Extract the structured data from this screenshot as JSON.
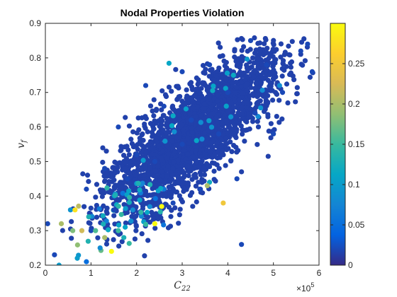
{
  "chart_data": {
    "type": "scatter",
    "title": "Nodal Properties Violation",
    "xlabel": "C",
    "xlabel_sub": "22",
    "ylabel": "v",
    "ylabel_sub": "f",
    "x_multiplier_base": "×10",
    "x_multiplier_exp": "5",
    "xlim": [
      0,
      6
    ],
    "ylim": [
      0.2,
      0.9
    ],
    "x_ticks": [
      "0",
      "1",
      "2",
      "3",
      "4",
      "5",
      "6"
    ],
    "y_ticks": [
      "0.2",
      "0.3",
      "0.4",
      "0.5",
      "0.6",
      "0.7",
      "0.8",
      "0.9"
    ],
    "colorbar": {
      "colormap": "parula",
      "clim": [
        0,
        0.3
      ],
      "ticks": [
        "0",
        "0.05",
        "0.1",
        "0.15",
        "0.2",
        "0.25"
      ],
      "tick_values": [
        0,
        0.05,
        0.1,
        0.15,
        0.2,
        0.25
      ]
    },
    "grid": false,
    "points": [
      [
        1.45,
        0.24,
        0.3
      ],
      [
        0.3,
        0.2,
        0.1
      ],
      [
        0.2,
        0.23,
        0.02
      ],
      [
        0.05,
        0.32,
        0.02
      ],
      [
        0.8,
        0.3,
        0.22
      ],
      [
        0.35,
        0.32,
        0.2
      ],
      [
        0.6,
        0.3,
        0.18
      ],
      [
        0.65,
        0.36,
        0.28
      ],
      [
        2.55,
        0.37,
        0.3
      ],
      [
        2.4,
        0.32,
        0.3
      ],
      [
        1.3,
        0.28,
        0.2
      ],
      [
        1.6,
        0.3,
        0.15
      ],
      [
        0.7,
        0.22,
        0.1
      ],
      [
        0.9,
        0.21,
        0.05
      ],
      [
        1.2,
        0.25,
        0.08
      ],
      [
        4.3,
        0.26,
        0.02
      ],
      [
        5.75,
        0.84,
        0.02
      ],
      [
        5.6,
        0.82,
        0.02
      ],
      [
        4.5,
        0.85,
        0.02
      ],
      [
        4.85,
        0.78,
        0.02
      ],
      [
        5.85,
        0.76,
        0.02
      ],
      [
        3.9,
        0.38,
        0.25
      ],
      [
        3.55,
        0.43,
        0.2
      ],
      [
        3.6,
        0.44,
        0.12
      ],
      [
        1.1,
        0.3,
        0.16
      ],
      [
        0.95,
        0.34,
        0.13
      ],
      [
        1.75,
        0.31,
        0.11
      ],
      [
        0.55,
        0.36,
        0.09
      ],
      [
        1.0,
        0.3,
        0.02
      ],
      [
        1.5,
        0.36,
        0.02
      ],
      [
        2.0,
        0.52,
        0.02
      ],
      [
        1.8,
        0.45,
        0.02
      ],
      [
        3.2,
        0.62,
        0.02
      ],
      [
        3.0,
        0.55,
        0.02
      ],
      [
        4.0,
        0.7,
        0.02
      ],
      [
        2.6,
        0.66,
        0.02
      ],
      [
        2.4,
        0.5,
        0.02
      ],
      [
        3.8,
        0.58,
        0.02
      ],
      [
        4.6,
        0.64,
        0.02
      ],
      [
        5.2,
        0.7,
        0.02
      ],
      [
        5.0,
        0.58,
        0.02
      ],
      [
        4.2,
        0.45,
        0.02
      ],
      [
        3.4,
        0.42,
        0.02
      ],
      [
        2.8,
        0.38,
        0.02
      ],
      [
        1.3,
        0.48,
        0.02
      ],
      [
        0.9,
        0.42,
        0.02
      ],
      [
        1.6,
        0.6,
        0.02
      ],
      [
        2.2,
        0.72,
        0.02
      ],
      [
        3.0,
        0.76,
        0.02
      ],
      [
        3.6,
        0.78,
        0.02
      ]
    ]
  }
}
